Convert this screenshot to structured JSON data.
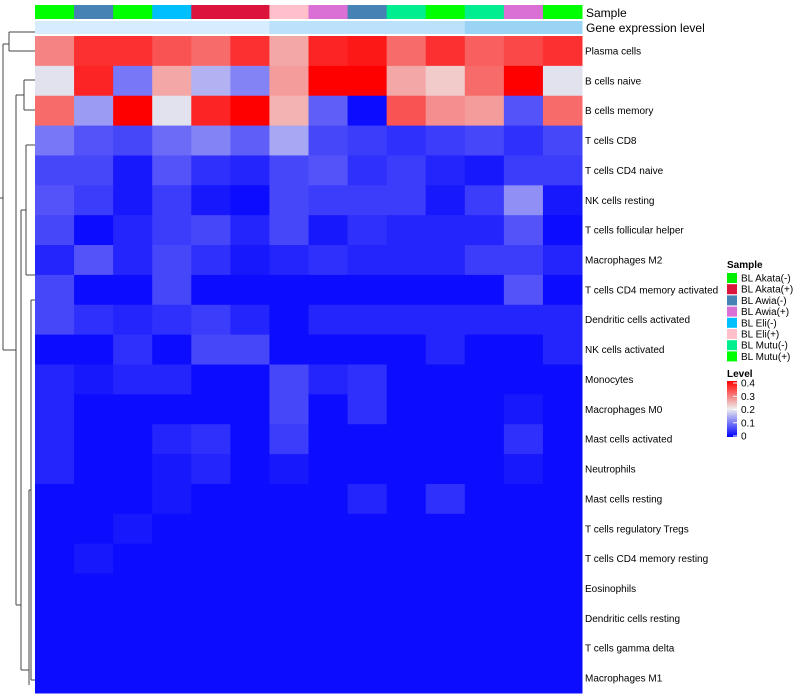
{
  "chart_data": {
    "type": "heatmap",
    "annotation_rows": {
      "sample_label": "Sample",
      "expression_label": "Gene expression level"
    },
    "samples": [
      "BL Mutu(+)",
      "BL Awia(-)",
      "BL Mutu(+)",
      "BL Eli(-)",
      "BL Akata(+)",
      "BL Akata(+)",
      "BL Eli(+)",
      "BL Awia(+)",
      "BL Awia(-)",
      "BL Mutu(-)",
      "BL Mutu(+)",
      "BL Mutu(-)",
      "BL Awia(+)",
      "BL Mutu(+)"
    ],
    "expression_level": [
      0.05,
      0.05,
      0.05,
      0.05,
      0.05,
      0.05,
      0.3,
      0.3,
      0.3,
      0.3,
      0.3,
      0.6,
      0.6,
      0.6
    ],
    "rows": [
      "Plasma cells",
      "B cells naive",
      "B cells memory",
      "T cells CD8",
      "T cells CD4 naive",
      "NK cells resting",
      "T cells follicular helper",
      "Macrophages M2",
      "T cells CD4 memory activated",
      "Dendritic cells activated",
      "NK cells activated",
      "Monocytes",
      "Macrophages M0",
      "Mast cells activated",
      "Neutrophils",
      "Mast cells resting",
      "T cells regulatory  Tregs",
      "T cells CD4 memory resting",
      "Eosinophils",
      "Dendritic cells resting",
      "T cells gamma delta",
      "Macrophages M1"
    ],
    "values": [
      [
        0.29,
        0.36,
        0.36,
        0.33,
        0.31,
        0.36,
        0.26,
        0.37,
        0.38,
        0.31,
        0.36,
        0.32,
        0.34,
        0.36
      ],
      [
        0.19,
        0.37,
        0.1,
        0.26,
        0.15,
        0.11,
        0.27,
        0.4,
        0.4,
        0.26,
        0.23,
        0.31,
        0.4,
        0.19
      ],
      [
        0.31,
        0.13,
        0.4,
        0.19,
        0.37,
        0.4,
        0.25,
        0.08,
        0.01,
        0.33,
        0.28,
        0.27,
        0.07,
        0.31
      ],
      [
        0.1,
        0.07,
        0.06,
        0.09,
        0.11,
        0.08,
        0.14,
        0.06,
        0.05,
        0.04,
        0.05,
        0.06,
        0.04,
        0.06
      ],
      [
        0.06,
        0.06,
        0.02,
        0.07,
        0.04,
        0.03,
        0.06,
        0.07,
        0.04,
        0.05,
        0.03,
        0.02,
        0.05,
        0.05
      ],
      [
        0.07,
        0.05,
        0.02,
        0.05,
        0.02,
        0.01,
        0.06,
        0.05,
        0.05,
        0.05,
        0.02,
        0.05,
        0.12,
        0.02
      ],
      [
        0.06,
        0.01,
        0.03,
        0.05,
        0.06,
        0.03,
        0.06,
        0.02,
        0.04,
        0.03,
        0.03,
        0.03,
        0.07,
        0.01
      ],
      [
        0.03,
        0.07,
        0.03,
        0.06,
        0.04,
        0.02,
        0.03,
        0.04,
        0.03,
        0.03,
        0.03,
        0.05,
        0.05,
        0.03
      ],
      [
        0.06,
        0.01,
        0.01,
        0.06,
        0.01,
        0.01,
        0.01,
        0.01,
        0.01,
        0.01,
        0.01,
        0.01,
        0.07,
        0.01
      ],
      [
        0.06,
        0.04,
        0.03,
        0.04,
        0.05,
        0.03,
        0.01,
        0.03,
        0.03,
        0.03,
        0.03,
        0.03,
        0.03,
        0.03
      ],
      [
        0.01,
        0.01,
        0.04,
        0.01,
        0.06,
        0.06,
        0.01,
        0.01,
        0.01,
        0.01,
        0.03,
        0.01,
        0.01,
        0.03
      ],
      [
        0.03,
        0.02,
        0.03,
        0.03,
        0.01,
        0.01,
        0.06,
        0.03,
        0.04,
        0.01,
        0.01,
        0.01,
        0.01,
        0.01
      ],
      [
        0.03,
        0.01,
        0.01,
        0.01,
        0.01,
        0.01,
        0.06,
        0.01,
        0.04,
        0.01,
        0.01,
        0.01,
        0.02,
        0.01
      ],
      [
        0.03,
        0.01,
        0.01,
        0.03,
        0.04,
        0.01,
        0.05,
        0.01,
        0.01,
        0.01,
        0.01,
        0.01,
        0.04,
        0.01
      ],
      [
        0.03,
        0.01,
        0.01,
        0.02,
        0.03,
        0.01,
        0.02,
        0.01,
        0.01,
        0.01,
        0.01,
        0.01,
        0.02,
        0.01
      ],
      [
        0.01,
        0.01,
        0.01,
        0.02,
        0.01,
        0.01,
        0.01,
        0.01,
        0.03,
        0.01,
        0.04,
        0.01,
        0.01,
        0.01
      ],
      [
        0.01,
        0.01,
        0.02,
        0.01,
        0.01,
        0.01,
        0.01,
        0.01,
        0.01,
        0.01,
        0.01,
        0.01,
        0.01,
        0.01
      ],
      [
        0.01,
        0.02,
        0.01,
        0.01,
        0.01,
        0.01,
        0.01,
        0.01,
        0.01,
        0.01,
        0.01,
        0.01,
        0.01,
        0.01
      ],
      [
        0.01,
        0.01,
        0.01,
        0.01,
        0.01,
        0.01,
        0.01,
        0.01,
        0.01,
        0.01,
        0.01,
        0.01,
        0.01,
        0.01
      ],
      [
        0.01,
        0.01,
        0.01,
        0.01,
        0.01,
        0.01,
        0.01,
        0.01,
        0.01,
        0.01,
        0.01,
        0.01,
        0.01,
        0.01
      ],
      [
        0.01,
        0.01,
        0.01,
        0.01,
        0.01,
        0.01,
        0.01,
        0.01,
        0.01,
        0.01,
        0.01,
        0.01,
        0.01,
        0.01
      ],
      [
        0.01,
        0.01,
        0.01,
        0.01,
        0.01,
        0.01,
        0.01,
        0.01,
        0.01,
        0.01,
        0.01,
        0.01,
        0.01,
        0.01
      ]
    ],
    "legend": {
      "sample_title": "Sample",
      "sample_entries": [
        {
          "label": "BL Akata(-)",
          "color": "#00ee00"
        },
        {
          "label": "BL Akata(+)",
          "color": "#dc143c"
        },
        {
          "label": "BL Awia(-)",
          "color": "#4682b4"
        },
        {
          "label": "BL Awia(+)",
          "color": "#da70d6"
        },
        {
          "label": "BL Eli(-)",
          "color": "#00bfff"
        },
        {
          "label": "BL Eli(+)",
          "color": "#ffc0cb"
        },
        {
          "label": "BL Mutu(-)",
          "color": "#00ee90"
        },
        {
          "label": "BL Mutu(+)",
          "color": "#00ff00"
        }
      ],
      "level_title": "Level",
      "level_ticks": [
        "0.4",
        "0.3",
        "0.2",
        "0.1",
        "0"
      ],
      "level_range": [
        0,
        0.4
      ]
    },
    "colors": {
      "low": "#0000ff",
      "mid": "#eeeeee",
      "high": "#ff0000",
      "expr_low": "#ddeeff",
      "expr_high": "#6ec3ee"
    }
  }
}
